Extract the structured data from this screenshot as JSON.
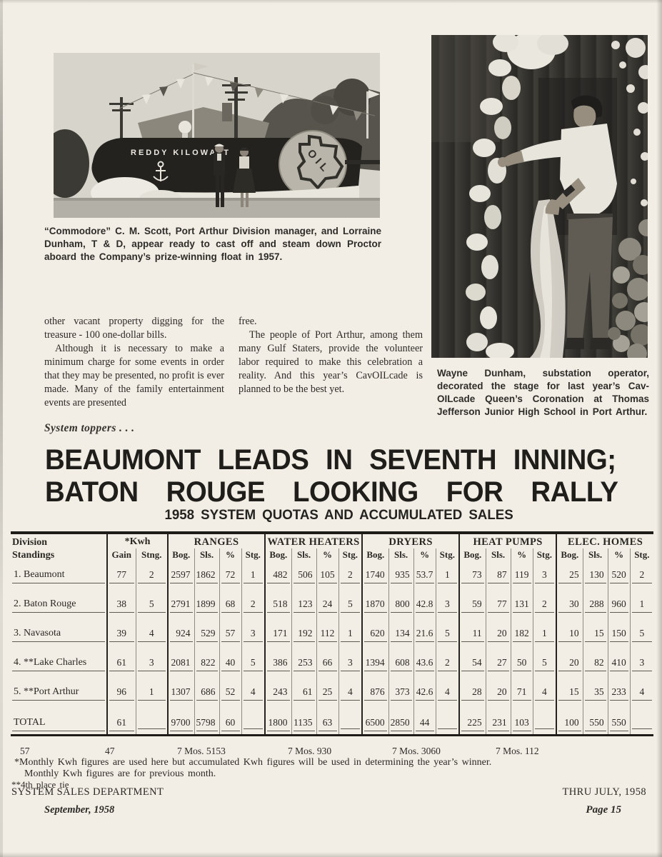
{
  "photos": {
    "left": {
      "caption": "“Commodore” C. M. Scott, Port Arthur Division manager, and Lorraine Dunham, T & D, appear ready to cast off and steam down Proctor aboard the Company’s prize-winning float in 1957.",
      "float_sign": "REDDY KILOWATT",
      "emblem_letters": "OIL"
    },
    "right": {
      "caption": "Wayne Dunham, substation operator, decorated the stage for last year’s Cav-OILcade Queen’s Coronation at Thomas Jefferson Junior High School in Port Arthur."
    }
  },
  "body": {
    "col1_para1": "other vacant property digging for the treasure - 100 one-dollar bills.",
    "col1_para2": "Although it is necessary to make a minimum charge for some events in order that they may be presented, no profit is ever made. Many of the family entertainment events are presented",
    "col2_para1": "free.",
    "col2_para2": "The people of Port Arthur, among them many Gulf Staters, provide the volunteer labor required to make this celebration a reality. And this year’s CavOILcade is planned to be the best yet."
  },
  "headline": {
    "kicker": "System toppers  .  .  .",
    "line1": "BEAUMONT LEADS IN SEVENTH INNING;",
    "line2": "BATON ROUGE LOOKING FOR RALLY",
    "subhead": "1958 SYSTEM QUOTAS AND ACCUMULATED SALES"
  },
  "table": {
    "division_header": {
      "line1": "Division",
      "line2": "Standings"
    },
    "kwh": {
      "title": "*Kwh",
      "subcols": [
        "Gain",
        "Stng."
      ]
    },
    "groups": [
      "RANGES",
      "WATER HEATERS",
      "DRYERS",
      "HEAT PUMPS",
      "ELEC. HOMES"
    ],
    "subcols": [
      "Bog.",
      "Sls.",
      "%",
      "Stg."
    ],
    "rows": [
      {
        "division": "1. Beaumont",
        "values": [
          "77",
          "2",
          "2597",
          "1862",
          "72",
          "1",
          "482",
          "506",
          "105",
          "2",
          "1740",
          "935",
          "53.7",
          "1",
          "73",
          "87",
          "119",
          "3",
          "25",
          "130",
          "520",
          "2"
        ]
      },
      {
        "division": "2. Baton Rouge",
        "values": [
          "38",
          "5",
          "2791",
          "1899",
          "68",
          "2",
          "518",
          "123",
          "24",
          "5",
          "1870",
          "800",
          "42.8",
          "3",
          "59",
          "77",
          "131",
          "2",
          "30",
          "288",
          "960",
          "1"
        ]
      },
      {
        "division": "3. Navasota",
        "values": [
          "39",
          "4",
          "924",
          "529",
          "57",
          "3",
          "171",
          "192",
          "112",
          "1",
          "620",
          "134",
          "21.6",
          "5",
          "11",
          "20",
          "182",
          "1",
          "10",
          "15",
          "150",
          "5"
        ]
      },
      {
        "division": "4. **Lake Charles",
        "values": [
          "61",
          "3",
          "2081",
          "822",
          "40",
          "5",
          "386",
          "253",
          "66",
          "3",
          "1394",
          "608",
          "43.6",
          "2",
          "54",
          "27",
          "50",
          "5",
          "20",
          "82",
          "410",
          "3"
        ]
      },
      {
        "division": "5. **Port Arthur",
        "values": [
          "96",
          "1",
          "1307",
          "686",
          "52",
          "4",
          "243",
          "61",
          "25",
          "4",
          "876",
          "373",
          "42.6",
          "4",
          "28",
          "20",
          "71",
          "4",
          "15",
          "35",
          "233",
          "4"
        ]
      },
      {
        "division": "TOTAL",
        "values": [
          "61",
          "",
          "9700",
          "5798",
          "60",
          "",
          "1800",
          "1135",
          "63",
          "",
          "6500",
          "2850",
          "44",
          "",
          "225",
          "231",
          "103",
          "",
          "100",
          "550",
          "550",
          ""
        ]
      }
    ]
  },
  "below_table": {
    "mos_line": [
      "57",
      "47",
      "7 Mos. 5153",
      "7 Mos. 930",
      "7 Mos. 3060",
      "7 Mos. 112"
    ],
    "footnote1": "*Monthly Kwh figures are used here but accumulated Kwh figures will be used in determining the year’s winner.",
    "footnote2": "Monthly Kwh figures are for previous month.",
    "footnote3": "**4th place tie",
    "dept": "SYSTEM SALES DEPARTMENT",
    "thru": "THRU JULY, 1958"
  },
  "footer": {
    "date": "September, 1958",
    "page_number": "Page 15"
  },
  "colors": {
    "paper": "#f2eee6",
    "ink": "#2c2a26",
    "rule_heavy": "#1d1c19",
    "photo_dark": "#23221f"
  }
}
